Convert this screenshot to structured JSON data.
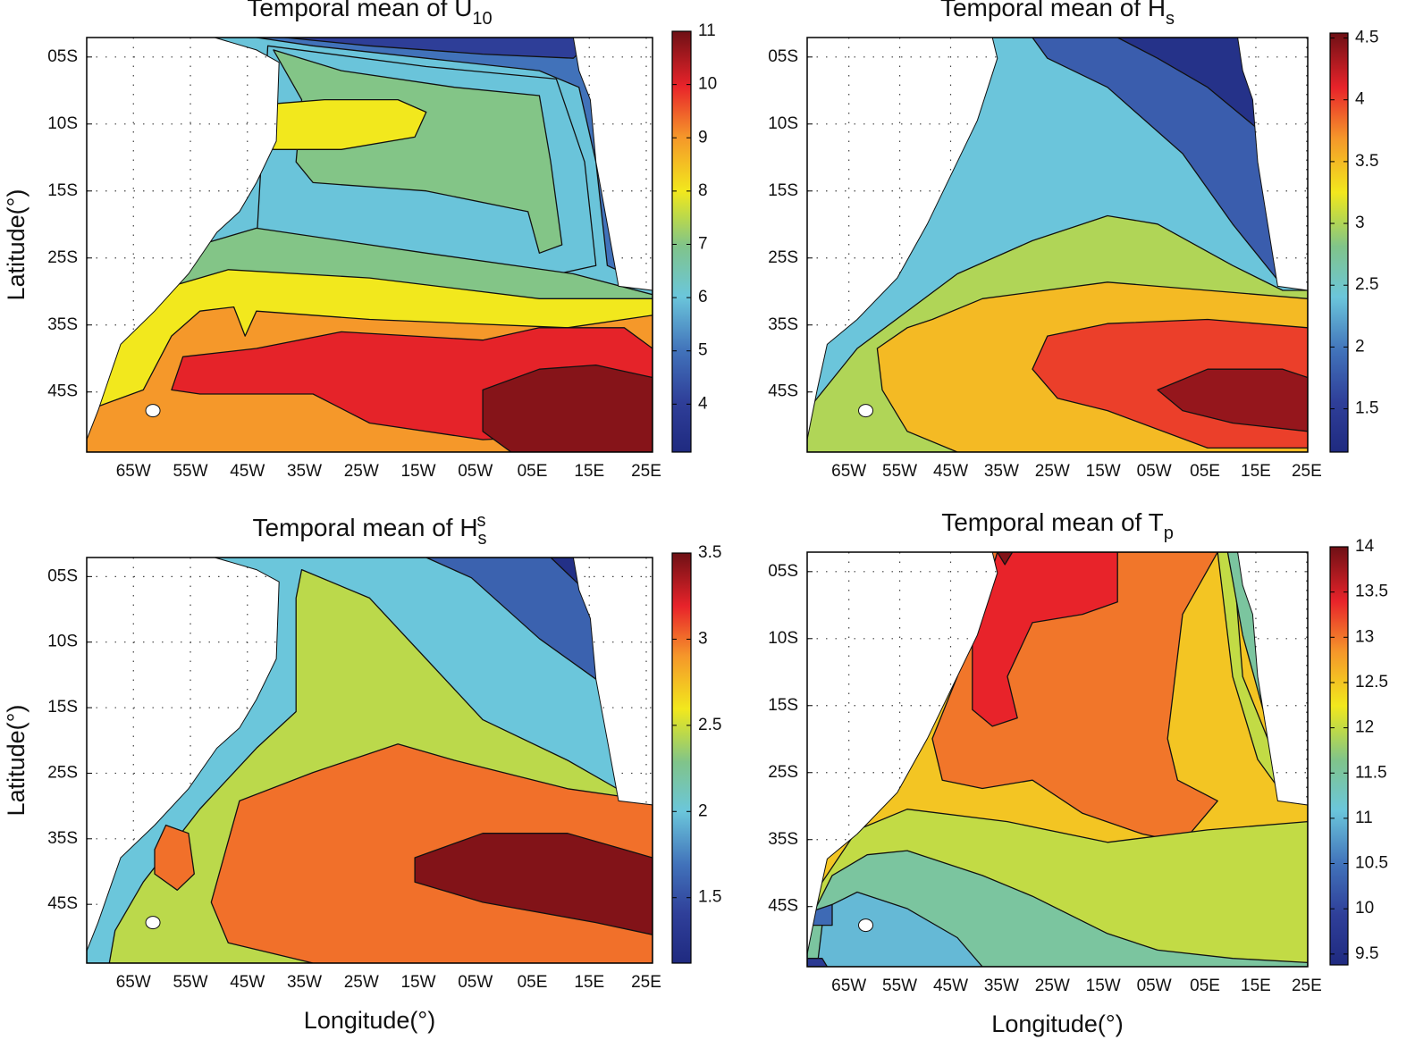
{
  "chart_data": [
    {
      "type": "contour",
      "title": "Temporal mean of U",
      "title_sub": "10",
      "ylabel": "Latitude(°)",
      "xlim": [
        -73.2,
        26.1
      ],
      "xticks": [
        {
          "value": -65,
          "label": "65W"
        },
        {
          "value": -55,
          "label": "55W"
        },
        {
          "value": -45,
          "label": "45W"
        },
        {
          "value": -35,
          "label": "35W"
        },
        {
          "value": -25,
          "label": "25W"
        },
        {
          "value": -15,
          "label": "15W"
        },
        {
          "value": -5,
          "label": "05W"
        },
        {
          "value": 5,
          "label": "05E"
        },
        {
          "value": 15,
          "label": "15E"
        },
        {
          "value": 25,
          "label": "25E"
        }
      ],
      "ytick_labels": [
        "05S",
        "10S",
        "15S",
        "25S",
        "35S",
        "45S"
      ],
      "clim": [
        3.1,
        11
      ],
      "cticks": [
        4,
        5,
        6,
        7,
        8,
        9,
        10,
        11
      ],
      "levels": [
        4,
        5,
        6,
        7,
        8,
        9,
        10,
        10.8
      ]
    },
    {
      "type": "contour",
      "title": "Temporal mean of H",
      "title_sub": "s",
      "xlim": [
        -73.2,
        25.2
      ],
      "xticks": [
        {
          "value": -65,
          "label": "65W"
        },
        {
          "value": -55,
          "label": "55W"
        },
        {
          "value": -45,
          "label": "45W"
        },
        {
          "value": -35,
          "label": "35W"
        },
        {
          "value": -25,
          "label": "25W"
        },
        {
          "value": -15,
          "label": "15W"
        },
        {
          "value": -5,
          "label": "05W"
        },
        {
          "value": 5,
          "label": "05E"
        },
        {
          "value": 15,
          "label": "15E"
        },
        {
          "value": 25,
          "label": "25E"
        }
      ],
      "ytick_labels": [
        "05S",
        "10S",
        "15S",
        "25S",
        "35S",
        "45S"
      ],
      "clim": [
        1.15,
        4.54
      ],
      "cticks": [
        1.5,
        2,
        2.5,
        3,
        3.5,
        4,
        4.5
      ],
      "levels": [
        1.3,
        1.8,
        2.4,
        3.0,
        3.5,
        4.0,
        4.4
      ]
    },
    {
      "type": "contour",
      "title": "Temporal mean of H",
      "title_sub": "s",
      "title_sup": "s",
      "ylabel": "Latitude(°)",
      "xlabel": "Longitude(°)",
      "xlim": [
        -73.2,
        26.1
      ],
      "xticks": [
        {
          "value": -65,
          "label": "65W"
        },
        {
          "value": -55,
          "label": "55W"
        },
        {
          "value": -45,
          "label": "45W"
        },
        {
          "value": -35,
          "label": "35W"
        },
        {
          "value": -25,
          "label": "25W"
        },
        {
          "value": -15,
          "label": "15W"
        },
        {
          "value": -5,
          "label": "05W"
        },
        {
          "value": 5,
          "label": "05E"
        },
        {
          "value": 15,
          "label": "15E"
        },
        {
          "value": 25,
          "label": "25E"
        }
      ],
      "ytick_labels": [
        "05S",
        "10S",
        "15S",
        "25S",
        "35S",
        "45S"
      ],
      "clim": [
        1.12,
        3.5
      ],
      "cticks": [
        1.5,
        2,
        2.5,
        3,
        3.5
      ],
      "levels": [
        1.2,
        1.6,
        2.0,
        2.45,
        3.0,
        3.45
      ]
    },
    {
      "type": "contour",
      "title": "Temporal mean of T",
      "title_sub": "p",
      "xlabel": "Longitude(°)",
      "xlim": [
        -73.2,
        25.2
      ],
      "xticks": [
        {
          "value": -65,
          "label": "65W"
        },
        {
          "value": -55,
          "label": "55W"
        },
        {
          "value": -45,
          "label": "45W"
        },
        {
          "value": -35,
          "label": "35W"
        },
        {
          "value": -25,
          "label": "25W"
        },
        {
          "value": -15,
          "label": "15W"
        },
        {
          "value": -5,
          "label": "05W"
        },
        {
          "value": 5,
          "label": "05E"
        },
        {
          "value": 15,
          "label": "15E"
        },
        {
          "value": 25,
          "label": "25E"
        }
      ],
      "ytick_labels": [
        "05S",
        "10S",
        "15S",
        "25S",
        "35S",
        "45S"
      ],
      "clim": [
        9.38,
        14
      ],
      "cticks": [
        9.5,
        10,
        10.5,
        11,
        11.5,
        12,
        12.5,
        13,
        13.5,
        14
      ],
      "levels": [
        9.8,
        10.4,
        11,
        11.5,
        12,
        12.5,
        13,
        13.4,
        13.9
      ]
    }
  ]
}
